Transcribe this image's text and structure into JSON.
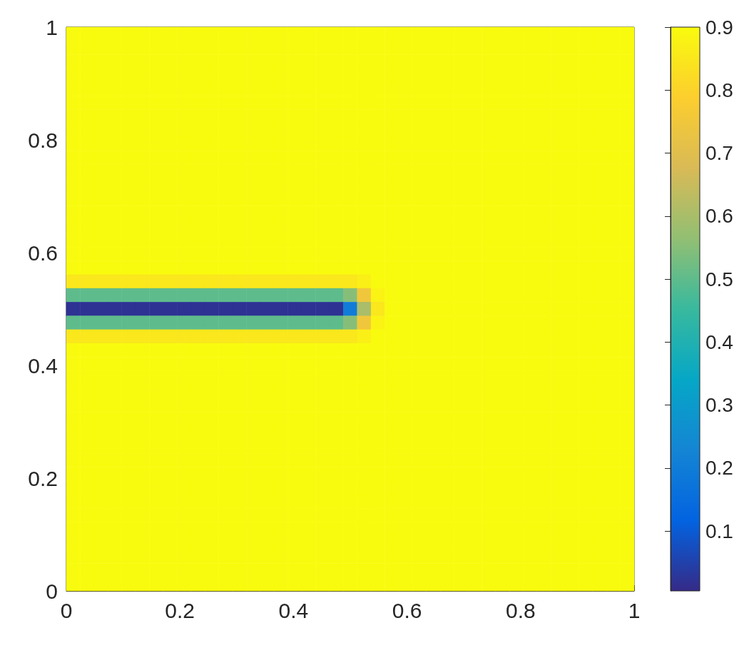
{
  "chart_data": {
    "type": "heatmap",
    "xlim": [
      0,
      1
    ],
    "ylim": [
      0,
      1
    ],
    "xticks": [
      0,
      0.2,
      0.4,
      0.6,
      0.8,
      1
    ],
    "yticks": [
      0,
      0.2,
      0.4,
      0.6,
      0.8,
      1
    ],
    "clim": [
      0.005,
      0.9
    ],
    "cticks": [
      0.1,
      0.2,
      0.3,
      0.4,
      0.5,
      0.6,
      0.7,
      0.8,
      0.9
    ],
    "grid": false,
    "cells": [
      [
        0.9,
        0.9,
        0.9,
        0.9,
        0.9,
        0.9,
        0.9,
        0.9,
        0.9,
        0.9,
        0.9,
        0.9,
        0.9,
        0.9,
        0.9,
        0.9,
        0.9,
        0.9,
        0.9,
        0.9,
        0.9,
        0.9,
        0.9,
        0.9,
        0.9,
        0.9,
        0.9,
        0.9,
        0.9,
        0.9,
        0.9,
        0.9,
        0.9,
        0.9,
        0.9,
        0.9,
        0.9,
        0.9,
        0.9,
        0.9,
        0.9
      ],
      [
        0.9,
        0.9,
        0.9,
        0.9,
        0.9,
        0.9,
        0.9,
        0.9,
        0.9,
        0.9,
        0.9,
        0.9,
        0.9,
        0.9,
        0.9,
        0.9,
        0.9,
        0.9,
        0.9,
        0.9,
        0.9,
        0.9,
        0.9,
        0.9,
        0.9,
        0.9,
        0.9,
        0.9,
        0.9,
        0.9,
        0.9,
        0.9,
        0.9,
        0.9,
        0.9,
        0.9,
        0.9,
        0.9,
        0.9,
        0.9,
        0.9
      ],
      [
        0.9,
        0.9,
        0.9,
        0.9,
        0.9,
        0.9,
        0.9,
        0.9,
        0.9,
        0.9,
        0.9,
        0.9,
        0.9,
        0.9,
        0.9,
        0.9,
        0.9,
        0.9,
        0.9,
        0.9,
        0.9,
        0.9,
        0.9,
        0.9,
        0.9,
        0.9,
        0.9,
        0.9,
        0.9,
        0.9,
        0.9,
        0.9,
        0.9,
        0.9,
        0.9,
        0.9,
        0.9,
        0.9,
        0.9,
        0.9,
        0.9
      ],
      [
        0.9,
        0.9,
        0.9,
        0.9,
        0.9,
        0.9,
        0.9,
        0.9,
        0.9,
        0.9,
        0.9,
        0.9,
        0.9,
        0.9,
        0.9,
        0.9,
        0.9,
        0.9,
        0.9,
        0.9,
        0.9,
        0.9,
        0.9,
        0.9,
        0.9,
        0.9,
        0.9,
        0.9,
        0.9,
        0.9,
        0.9,
        0.9,
        0.9,
        0.9,
        0.9,
        0.9,
        0.9,
        0.9,
        0.9,
        0.9,
        0.9
      ],
      [
        0.9,
        0.9,
        0.9,
        0.9,
        0.9,
        0.9,
        0.9,
        0.9,
        0.9,
        0.9,
        0.9,
        0.9,
        0.9,
        0.9,
        0.9,
        0.9,
        0.9,
        0.9,
        0.9,
        0.9,
        0.9,
        0.9,
        0.9,
        0.9,
        0.9,
        0.9,
        0.9,
        0.9,
        0.9,
        0.9,
        0.9,
        0.9,
        0.9,
        0.9,
        0.9,
        0.9,
        0.9,
        0.9,
        0.9,
        0.9,
        0.9
      ],
      [
        0.9,
        0.9,
        0.9,
        0.9,
        0.9,
        0.9,
        0.9,
        0.9,
        0.9,
        0.9,
        0.9,
        0.9,
        0.9,
        0.9,
        0.9,
        0.9,
        0.9,
        0.9,
        0.9,
        0.9,
        0.9,
        0.9,
        0.9,
        0.9,
        0.9,
        0.9,
        0.9,
        0.9,
        0.9,
        0.9,
        0.9,
        0.9,
        0.9,
        0.9,
        0.9,
        0.9,
        0.9,
        0.9,
        0.9,
        0.9,
        0.9
      ],
      [
        0.9,
        0.9,
        0.9,
        0.9,
        0.9,
        0.9,
        0.9,
        0.9,
        0.9,
        0.9,
        0.9,
        0.9,
        0.9,
        0.9,
        0.9,
        0.9,
        0.9,
        0.9,
        0.9,
        0.9,
        0.9,
        0.9,
        0.9,
        0.9,
        0.9,
        0.9,
        0.9,
        0.9,
        0.9,
        0.9,
        0.9,
        0.9,
        0.9,
        0.9,
        0.9,
        0.9,
        0.9,
        0.9,
        0.9,
        0.9,
        0.9
      ],
      [
        0.9,
        0.9,
        0.9,
        0.9,
        0.9,
        0.9,
        0.9,
        0.9,
        0.9,
        0.9,
        0.9,
        0.9,
        0.9,
        0.9,
        0.9,
        0.9,
        0.9,
        0.9,
        0.9,
        0.9,
        0.9,
        0.9,
        0.9,
        0.9,
        0.9,
        0.9,
        0.9,
        0.9,
        0.9,
        0.9,
        0.9,
        0.9,
        0.9,
        0.9,
        0.9,
        0.9,
        0.9,
        0.9,
        0.9,
        0.9,
        0.9
      ],
      [
        0.9,
        0.9,
        0.9,
        0.9,
        0.9,
        0.9,
        0.9,
        0.9,
        0.9,
        0.9,
        0.9,
        0.9,
        0.9,
        0.9,
        0.9,
        0.9,
        0.9,
        0.9,
        0.9,
        0.9,
        0.9,
        0.9,
        0.9,
        0.9,
        0.9,
        0.9,
        0.9,
        0.9,
        0.9,
        0.9,
        0.9,
        0.9,
        0.9,
        0.9,
        0.9,
        0.9,
        0.9,
        0.9,
        0.9,
        0.9,
        0.9
      ],
      [
        0.9,
        0.9,
        0.9,
        0.9,
        0.9,
        0.9,
        0.9,
        0.9,
        0.9,
        0.9,
        0.9,
        0.9,
        0.9,
        0.9,
        0.9,
        0.9,
        0.9,
        0.9,
        0.9,
        0.9,
        0.9,
        0.9,
        0.9,
        0.9,
        0.9,
        0.9,
        0.9,
        0.9,
        0.9,
        0.9,
        0.9,
        0.9,
        0.9,
        0.9,
        0.9,
        0.9,
        0.9,
        0.9,
        0.9,
        0.9,
        0.9
      ],
      [
        0.9,
        0.9,
        0.9,
        0.9,
        0.9,
        0.9,
        0.9,
        0.9,
        0.9,
        0.9,
        0.9,
        0.9,
        0.9,
        0.9,
        0.9,
        0.9,
        0.9,
        0.9,
        0.9,
        0.9,
        0.9,
        0.9,
        0.9,
        0.9,
        0.9,
        0.9,
        0.9,
        0.9,
        0.9,
        0.9,
        0.9,
        0.9,
        0.9,
        0.9,
        0.9,
        0.9,
        0.9,
        0.9,
        0.9,
        0.9,
        0.9
      ],
      [
        0.9,
        0.9,
        0.9,
        0.9,
        0.9,
        0.9,
        0.9,
        0.9,
        0.9,
        0.9,
        0.9,
        0.9,
        0.9,
        0.9,
        0.9,
        0.9,
        0.9,
        0.9,
        0.9,
        0.9,
        0.9,
        0.9,
        0.9,
        0.9,
        0.9,
        0.9,
        0.9,
        0.9,
        0.9,
        0.9,
        0.9,
        0.9,
        0.9,
        0.9,
        0.9,
        0.9,
        0.9,
        0.9,
        0.9,
        0.9,
        0.9
      ],
      [
        0.9,
        0.9,
        0.9,
        0.9,
        0.9,
        0.9,
        0.9,
        0.9,
        0.9,
        0.9,
        0.9,
        0.9,
        0.9,
        0.9,
        0.9,
        0.9,
        0.9,
        0.9,
        0.9,
        0.9,
        0.9,
        0.9,
        0.9,
        0.9,
        0.9,
        0.9,
        0.9,
        0.9,
        0.9,
        0.9,
        0.9,
        0.9,
        0.9,
        0.9,
        0.9,
        0.9,
        0.9,
        0.9,
        0.9,
        0.9,
        0.9
      ],
      [
        0.9,
        0.9,
        0.9,
        0.9,
        0.9,
        0.9,
        0.9,
        0.9,
        0.9,
        0.9,
        0.9,
        0.9,
        0.9,
        0.9,
        0.9,
        0.9,
        0.9,
        0.9,
        0.9,
        0.9,
        0.9,
        0.9,
        0.9,
        0.9,
        0.9,
        0.9,
        0.9,
        0.9,
        0.9,
        0.9,
        0.9,
        0.9,
        0.9,
        0.9,
        0.9,
        0.9,
        0.9,
        0.9,
        0.9,
        0.9,
        0.9
      ],
      [
        0.9,
        0.9,
        0.9,
        0.9,
        0.9,
        0.9,
        0.9,
        0.9,
        0.9,
        0.9,
        0.9,
        0.9,
        0.9,
        0.9,
        0.9,
        0.9,
        0.9,
        0.9,
        0.9,
        0.9,
        0.9,
        0.9,
        0.9,
        0.9,
        0.9,
        0.9,
        0.9,
        0.9,
        0.9,
        0.9,
        0.9,
        0.9,
        0.9,
        0.9,
        0.9,
        0.9,
        0.9,
        0.9,
        0.9,
        0.9,
        0.9
      ],
      [
        0.9,
        0.9,
        0.9,
        0.9,
        0.9,
        0.9,
        0.9,
        0.9,
        0.9,
        0.9,
        0.9,
        0.9,
        0.9,
        0.9,
        0.9,
        0.9,
        0.9,
        0.9,
        0.9,
        0.9,
        0.9,
        0.9,
        0.9,
        0.9,
        0.9,
        0.9,
        0.9,
        0.9,
        0.9,
        0.9,
        0.9,
        0.9,
        0.9,
        0.9,
        0.9,
        0.9,
        0.9,
        0.9,
        0.9,
        0.9,
        0.9
      ],
      [
        0.9,
        0.9,
        0.9,
        0.9,
        0.9,
        0.9,
        0.9,
        0.9,
        0.9,
        0.9,
        0.9,
        0.9,
        0.9,
        0.9,
        0.9,
        0.9,
        0.9,
        0.9,
        0.9,
        0.9,
        0.9,
        0.9,
        0.9,
        0.9,
        0.9,
        0.9,
        0.9,
        0.9,
        0.9,
        0.9,
        0.9,
        0.9,
        0.9,
        0.9,
        0.9,
        0.9,
        0.9,
        0.9,
        0.9,
        0.9,
        0.9
      ],
      [
        0.9,
        0.9,
        0.9,
        0.9,
        0.9,
        0.9,
        0.9,
        0.9,
        0.9,
        0.9,
        0.9,
        0.9,
        0.9,
        0.9,
        0.9,
        0.9,
        0.9,
        0.9,
        0.9,
        0.9,
        0.9,
        0.9,
        0.9,
        0.9,
        0.9,
        0.9,
        0.9,
        0.9,
        0.9,
        0.9,
        0.9,
        0.9,
        0.9,
        0.9,
        0.9,
        0.9,
        0.9,
        0.9,
        0.9,
        0.9,
        0.9
      ],
      [
        0.85,
        0.85,
        0.85,
        0.85,
        0.85,
        0.85,
        0.85,
        0.85,
        0.85,
        0.85,
        0.85,
        0.85,
        0.85,
        0.85,
        0.85,
        0.85,
        0.85,
        0.85,
        0.85,
        0.85,
        0.85,
        0.87,
        0.9,
        0.9,
        0.9,
        0.9,
        0.9,
        0.9,
        0.9,
        0.9,
        0.9,
        0.9,
        0.9,
        0.9,
        0.9,
        0.9,
        0.9,
        0.9,
        0.9,
        0.9,
        0.9
      ],
      [
        0.5,
        0.5,
        0.5,
        0.5,
        0.5,
        0.5,
        0.5,
        0.5,
        0.5,
        0.5,
        0.5,
        0.5,
        0.5,
        0.5,
        0.5,
        0.5,
        0.5,
        0.5,
        0.5,
        0.5,
        0.55,
        0.75,
        0.88,
        0.9,
        0.9,
        0.9,
        0.9,
        0.9,
        0.9,
        0.9,
        0.9,
        0.9,
        0.9,
        0.9,
        0.9,
        0.9,
        0.9,
        0.9,
        0.9,
        0.9,
        0.9
      ],
      [
        0.02,
        0.02,
        0.02,
        0.02,
        0.02,
        0.02,
        0.02,
        0.02,
        0.02,
        0.02,
        0.02,
        0.02,
        0.02,
        0.02,
        0.02,
        0.02,
        0.02,
        0.02,
        0.02,
        0.02,
        0.2,
        0.6,
        0.85,
        0.9,
        0.9,
        0.9,
        0.9,
        0.9,
        0.9,
        0.9,
        0.9,
        0.9,
        0.9,
        0.9,
        0.9,
        0.9,
        0.9,
        0.9,
        0.9,
        0.9,
        0.9
      ],
      [
        0.5,
        0.5,
        0.5,
        0.5,
        0.5,
        0.5,
        0.5,
        0.5,
        0.5,
        0.5,
        0.5,
        0.5,
        0.5,
        0.5,
        0.5,
        0.5,
        0.5,
        0.5,
        0.5,
        0.5,
        0.55,
        0.75,
        0.88,
        0.9,
        0.9,
        0.9,
        0.9,
        0.9,
        0.9,
        0.9,
        0.9,
        0.9,
        0.9,
        0.9,
        0.9,
        0.9,
        0.9,
        0.9,
        0.9,
        0.9,
        0.9
      ],
      [
        0.85,
        0.85,
        0.85,
        0.85,
        0.85,
        0.85,
        0.85,
        0.85,
        0.85,
        0.85,
        0.85,
        0.85,
        0.85,
        0.85,
        0.85,
        0.85,
        0.85,
        0.85,
        0.85,
        0.85,
        0.85,
        0.87,
        0.9,
        0.9,
        0.9,
        0.9,
        0.9,
        0.9,
        0.9,
        0.9,
        0.9,
        0.9,
        0.9,
        0.9,
        0.9,
        0.9,
        0.9,
        0.9,
        0.9,
        0.9,
        0.9
      ],
      [
        0.9,
        0.9,
        0.9,
        0.9,
        0.9,
        0.9,
        0.9,
        0.9,
        0.9,
        0.9,
        0.9,
        0.9,
        0.9,
        0.9,
        0.9,
        0.9,
        0.9,
        0.9,
        0.9,
        0.9,
        0.9,
        0.9,
        0.9,
        0.9,
        0.9,
        0.9,
        0.9,
        0.9,
        0.9,
        0.9,
        0.9,
        0.9,
        0.9,
        0.9,
        0.9,
        0.9,
        0.9,
        0.9,
        0.9,
        0.9,
        0.9
      ],
      [
        0.9,
        0.9,
        0.9,
        0.9,
        0.9,
        0.9,
        0.9,
        0.9,
        0.9,
        0.9,
        0.9,
        0.9,
        0.9,
        0.9,
        0.9,
        0.9,
        0.9,
        0.9,
        0.9,
        0.9,
        0.9,
        0.9,
        0.9,
        0.9,
        0.9,
        0.9,
        0.9,
        0.9,
        0.9,
        0.9,
        0.9,
        0.9,
        0.9,
        0.9,
        0.9,
        0.9,
        0.9,
        0.9,
        0.9,
        0.9,
        0.9
      ],
      [
        0.9,
        0.9,
        0.9,
        0.9,
        0.9,
        0.9,
        0.9,
        0.9,
        0.9,
        0.9,
        0.9,
        0.9,
        0.9,
        0.9,
        0.9,
        0.9,
        0.9,
        0.9,
        0.9,
        0.9,
        0.9,
        0.9,
        0.9,
        0.9,
        0.9,
        0.9,
        0.9,
        0.9,
        0.9,
        0.9,
        0.9,
        0.9,
        0.9,
        0.9,
        0.9,
        0.9,
        0.9,
        0.9,
        0.9,
        0.9,
        0.9
      ],
      [
        0.9,
        0.9,
        0.9,
        0.9,
        0.9,
        0.9,
        0.9,
        0.9,
        0.9,
        0.9,
        0.9,
        0.9,
        0.9,
        0.9,
        0.9,
        0.9,
        0.9,
        0.9,
        0.9,
        0.9,
        0.9,
        0.9,
        0.9,
        0.9,
        0.9,
        0.9,
        0.9,
        0.9,
        0.9,
        0.9,
        0.9,
        0.9,
        0.9,
        0.9,
        0.9,
        0.9,
        0.9,
        0.9,
        0.9,
        0.9,
        0.9
      ],
      [
        0.9,
        0.9,
        0.9,
        0.9,
        0.9,
        0.9,
        0.9,
        0.9,
        0.9,
        0.9,
        0.9,
        0.9,
        0.9,
        0.9,
        0.9,
        0.9,
        0.9,
        0.9,
        0.9,
        0.9,
        0.9,
        0.9,
        0.9,
        0.9,
        0.9,
        0.9,
        0.9,
        0.9,
        0.9,
        0.9,
        0.9,
        0.9,
        0.9,
        0.9,
        0.9,
        0.9,
        0.9,
        0.9,
        0.9,
        0.9,
        0.9
      ],
      [
        0.9,
        0.9,
        0.9,
        0.9,
        0.9,
        0.9,
        0.9,
        0.9,
        0.9,
        0.9,
        0.9,
        0.9,
        0.9,
        0.9,
        0.9,
        0.9,
        0.9,
        0.9,
        0.9,
        0.9,
        0.9,
        0.9,
        0.9,
        0.9,
        0.9,
        0.9,
        0.9,
        0.9,
        0.9,
        0.9,
        0.9,
        0.9,
        0.9,
        0.9,
        0.9,
        0.9,
        0.9,
        0.9,
        0.9,
        0.9,
        0.9
      ],
      [
        0.9,
        0.9,
        0.9,
        0.9,
        0.9,
        0.9,
        0.9,
        0.9,
        0.9,
        0.9,
        0.9,
        0.9,
        0.9,
        0.9,
        0.9,
        0.9,
        0.9,
        0.9,
        0.9,
        0.9,
        0.9,
        0.9,
        0.9,
        0.9,
        0.9,
        0.9,
        0.9,
        0.9,
        0.9,
        0.9,
        0.9,
        0.9,
        0.9,
        0.9,
        0.9,
        0.9,
        0.9,
        0.9,
        0.9,
        0.9,
        0.9
      ],
      [
        0.9,
        0.9,
        0.9,
        0.9,
        0.9,
        0.9,
        0.9,
        0.9,
        0.9,
        0.9,
        0.9,
        0.9,
        0.9,
        0.9,
        0.9,
        0.9,
        0.9,
        0.9,
        0.9,
        0.9,
        0.9,
        0.9,
        0.9,
        0.9,
        0.9,
        0.9,
        0.9,
        0.9,
        0.9,
        0.9,
        0.9,
        0.9,
        0.9,
        0.9,
        0.9,
        0.9,
        0.9,
        0.9,
        0.9,
        0.9,
        0.9
      ],
      [
        0.9,
        0.9,
        0.9,
        0.9,
        0.9,
        0.9,
        0.9,
        0.9,
        0.9,
        0.9,
        0.9,
        0.9,
        0.9,
        0.9,
        0.9,
        0.9,
        0.9,
        0.9,
        0.9,
        0.9,
        0.9,
        0.9,
        0.9,
        0.9,
        0.9,
        0.9,
        0.9,
        0.9,
        0.9,
        0.9,
        0.9,
        0.9,
        0.9,
        0.9,
        0.9,
        0.9,
        0.9,
        0.9,
        0.9,
        0.9,
        0.9
      ],
      [
        0.9,
        0.9,
        0.9,
        0.9,
        0.9,
        0.9,
        0.9,
        0.9,
        0.9,
        0.9,
        0.9,
        0.9,
        0.9,
        0.9,
        0.9,
        0.9,
        0.9,
        0.9,
        0.9,
        0.9,
        0.9,
        0.9,
        0.9,
        0.9,
        0.9,
        0.9,
        0.9,
        0.9,
        0.9,
        0.9,
        0.9,
        0.9,
        0.9,
        0.9,
        0.9,
        0.9,
        0.9,
        0.9,
        0.9,
        0.9,
        0.9
      ],
      [
        0.9,
        0.9,
        0.9,
        0.9,
        0.9,
        0.9,
        0.9,
        0.9,
        0.9,
        0.9,
        0.9,
        0.9,
        0.9,
        0.9,
        0.9,
        0.9,
        0.9,
        0.9,
        0.9,
        0.9,
        0.9,
        0.9,
        0.9,
        0.9,
        0.9,
        0.9,
        0.9,
        0.9,
        0.9,
        0.9,
        0.9,
        0.9,
        0.9,
        0.9,
        0.9,
        0.9,
        0.9,
        0.9,
        0.9,
        0.9,
        0.9
      ],
      [
        0.9,
        0.9,
        0.9,
        0.9,
        0.9,
        0.9,
        0.9,
        0.9,
        0.9,
        0.9,
        0.9,
        0.9,
        0.9,
        0.9,
        0.9,
        0.9,
        0.9,
        0.9,
        0.9,
        0.9,
        0.9,
        0.9,
        0.9,
        0.9,
        0.9,
        0.9,
        0.9,
        0.9,
        0.9,
        0.9,
        0.9,
        0.9,
        0.9,
        0.9,
        0.9,
        0.9,
        0.9,
        0.9,
        0.9,
        0.9,
        0.9
      ],
      [
        0.9,
        0.9,
        0.9,
        0.9,
        0.9,
        0.9,
        0.9,
        0.9,
        0.9,
        0.9,
        0.9,
        0.9,
        0.9,
        0.9,
        0.9,
        0.9,
        0.9,
        0.9,
        0.9,
        0.9,
        0.9,
        0.9,
        0.9,
        0.9,
        0.9,
        0.9,
        0.9,
        0.9,
        0.9,
        0.9,
        0.9,
        0.9,
        0.9,
        0.9,
        0.9,
        0.9,
        0.9,
        0.9,
        0.9,
        0.9,
        0.9
      ],
      [
        0.9,
        0.9,
        0.9,
        0.9,
        0.9,
        0.9,
        0.9,
        0.9,
        0.9,
        0.9,
        0.9,
        0.9,
        0.9,
        0.9,
        0.9,
        0.9,
        0.9,
        0.9,
        0.9,
        0.9,
        0.9,
        0.9,
        0.9,
        0.9,
        0.9,
        0.9,
        0.9,
        0.9,
        0.9,
        0.9,
        0.9,
        0.9,
        0.9,
        0.9,
        0.9,
        0.9,
        0.9,
        0.9,
        0.9,
        0.9,
        0.9
      ],
      [
        0.9,
        0.9,
        0.9,
        0.9,
        0.9,
        0.9,
        0.9,
        0.9,
        0.9,
        0.9,
        0.9,
        0.9,
        0.9,
        0.9,
        0.9,
        0.9,
        0.9,
        0.9,
        0.9,
        0.9,
        0.9,
        0.9,
        0.9,
        0.9,
        0.9,
        0.9,
        0.9,
        0.9,
        0.9,
        0.9,
        0.9,
        0.9,
        0.9,
        0.9,
        0.9,
        0.9,
        0.9,
        0.9,
        0.9,
        0.9,
        0.9
      ],
      [
        0.9,
        0.9,
        0.9,
        0.9,
        0.9,
        0.9,
        0.9,
        0.9,
        0.9,
        0.9,
        0.9,
        0.9,
        0.9,
        0.9,
        0.9,
        0.9,
        0.9,
        0.9,
        0.9,
        0.9,
        0.9,
        0.9,
        0.9,
        0.9,
        0.9,
        0.9,
        0.9,
        0.9,
        0.9,
        0.9,
        0.9,
        0.9,
        0.9,
        0.9,
        0.9,
        0.9,
        0.9,
        0.9,
        0.9,
        0.9,
        0.9
      ],
      [
        0.9,
        0.9,
        0.9,
        0.9,
        0.9,
        0.9,
        0.9,
        0.9,
        0.9,
        0.9,
        0.9,
        0.9,
        0.9,
        0.9,
        0.9,
        0.9,
        0.9,
        0.9,
        0.9,
        0.9,
        0.9,
        0.9,
        0.9,
        0.9,
        0.9,
        0.9,
        0.9,
        0.9,
        0.9,
        0.9,
        0.9,
        0.9,
        0.9,
        0.9,
        0.9,
        0.9,
        0.9,
        0.9,
        0.9,
        0.9,
        0.9
      ],
      [
        0.9,
        0.9,
        0.9,
        0.9,
        0.9,
        0.9,
        0.9,
        0.9,
        0.9,
        0.9,
        0.9,
        0.9,
        0.9,
        0.9,
        0.9,
        0.9,
        0.9,
        0.9,
        0.9,
        0.9,
        0.9,
        0.9,
        0.9,
        0.9,
        0.9,
        0.9,
        0.9,
        0.9,
        0.9,
        0.9,
        0.9,
        0.9,
        0.9,
        0.9,
        0.9,
        0.9,
        0.9,
        0.9,
        0.9,
        0.9,
        0.9
      ]
    ]
  }
}
